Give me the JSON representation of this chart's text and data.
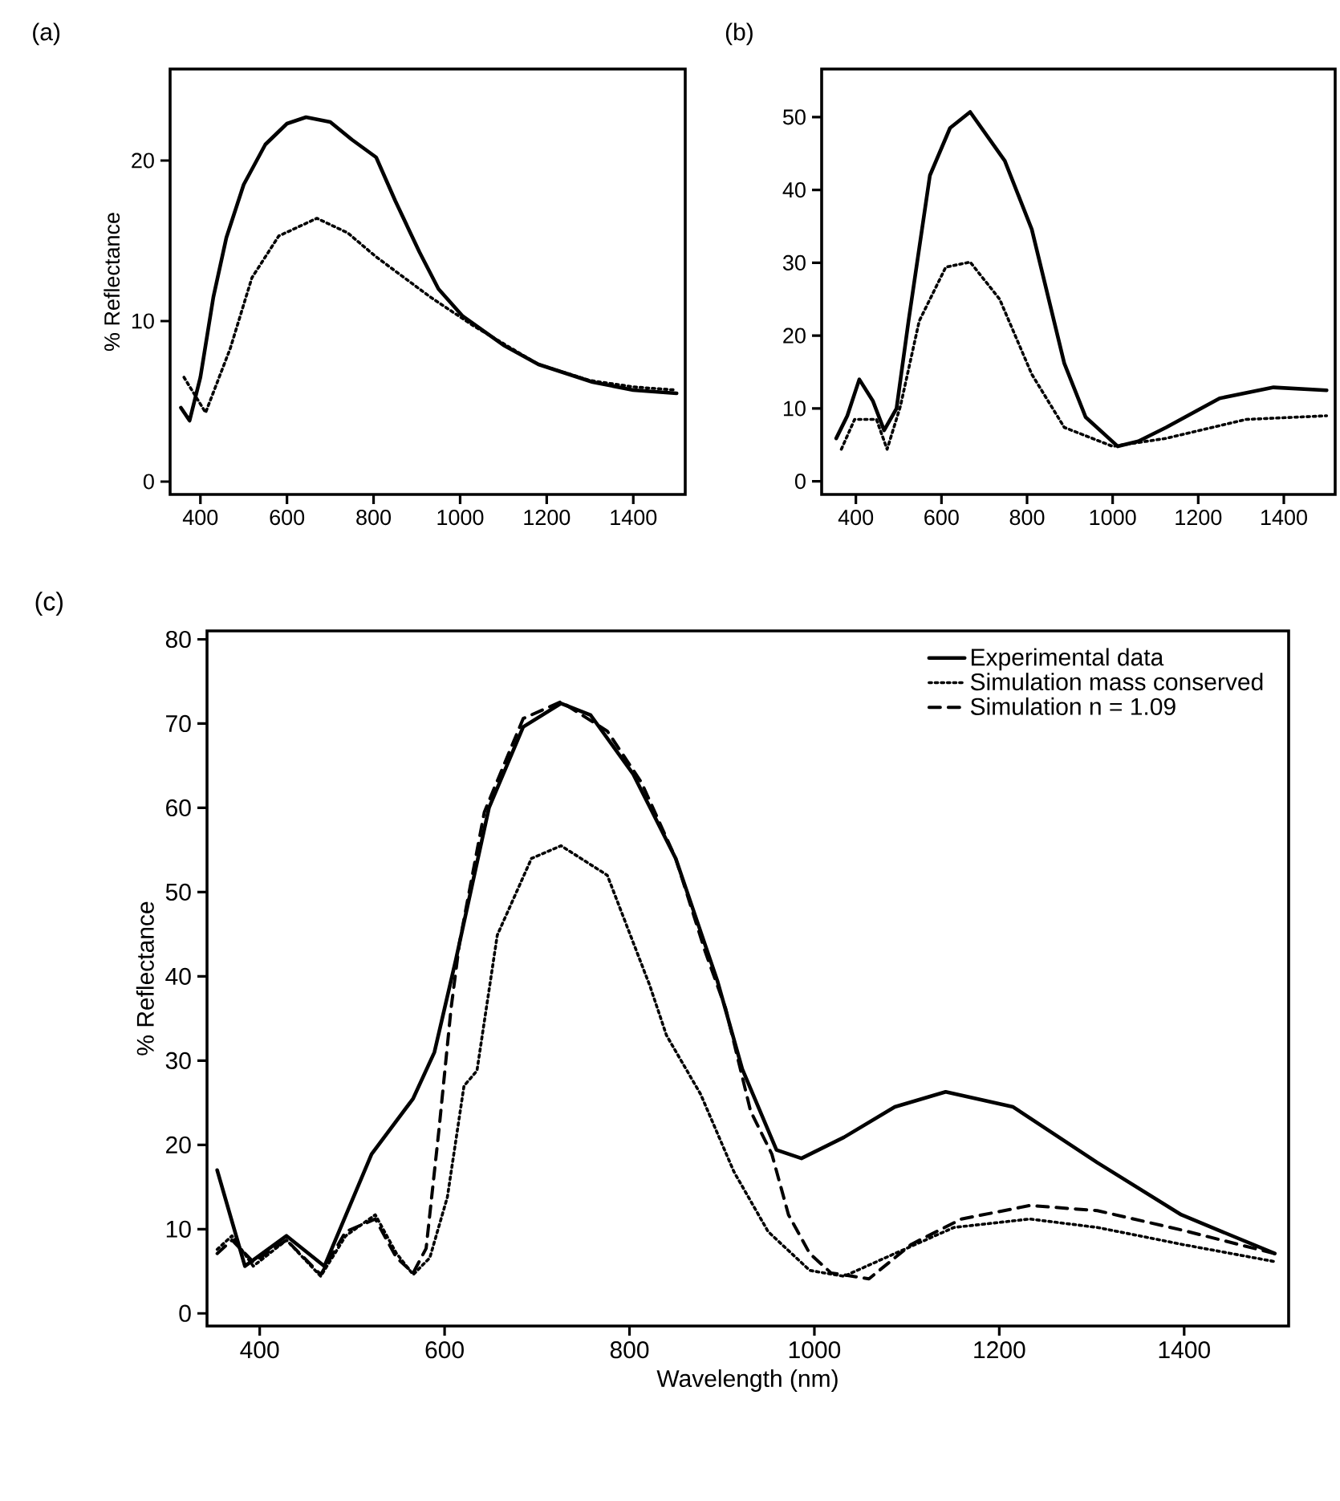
{
  "chart_data": [
    {
      "type": "line",
      "title": "(a)",
      "ylabel": "% Reflectance",
      "xlim": [
        330,
        1520
      ],
      "ylim": [
        -0.8,
        25.7
      ],
      "xticks": [
        400,
        600,
        800,
        1000,
        1200,
        1400
      ],
      "yticks": [
        0,
        10,
        20
      ],
      "series": [
        {
          "color": "#000000",
          "line_style": "solid",
          "x": [
            355,
            375,
            400,
            430,
            460,
            500,
            550,
            600,
            644,
            700,
            750,
            806,
            850,
            906,
            950,
            1006,
            1100,
            1181,
            1306,
            1400,
            1500
          ],
          "values": [
            4.6,
            3.8,
            6.5,
            11.5,
            15.2,
            18.5,
            21,
            22.3,
            22.7,
            22.4,
            21.3,
            20.2,
            17.5,
            14.3,
            12,
            10.3,
            8.5,
            7.3,
            6.2,
            5.7,
            5.5
          ]
        },
        {
          "color": "#000000",
          "line_style": "dotted",
          "x": [
            362,
            412,
            469,
            519,
            581,
            669,
            740,
            806,
            931,
            1031,
            1181,
            1300,
            1400,
            1500
          ],
          "values": [
            6.5,
            4.3,
            8.3,
            12.7,
            15.3,
            16.4,
            15.5,
            14,
            11.5,
            9.7,
            7.3,
            6.3,
            5.9,
            5.7
          ]
        }
      ]
    },
    {
      "type": "line",
      "title": "(b)",
      "xlim": [
        320,
        1520
      ],
      "ylim": [
        -1.8,
        56.6
      ],
      "xticks": [
        400,
        600,
        800,
        1000,
        1200,
        1400
      ],
      "yticks": [
        0,
        10,
        20,
        30,
        40,
        50
      ],
      "series": [
        {
          "color": "#000000",
          "line_style": "solid",
          "x": [
            354,
            380,
            408,
            440,
            466,
            495,
            523,
            573,
            620,
            667,
            748,
            811,
            887,
            937,
            1012,
            1060,
            1125,
            1250,
            1376,
            1500
          ],
          "values": [
            5.9,
            9,
            14,
            11,
            7,
            10,
            22,
            42,
            48.5,
            50.7,
            44,
            34.6,
            16.2,
            8.8,
            4.8,
            5.5,
            7.4,
            11.4,
            12.9,
            12.5
          ]
        },
        {
          "color": "#000000",
          "line_style": "dotted",
          "x": [
            366,
            397,
            448,
            473,
            504,
            548,
            610,
            667,
            736,
            811,
            887,
            1000,
            1125,
            1312,
            1500
          ],
          "values": [
            4.4,
            8.5,
            8.5,
            4.4,
            10.3,
            22,
            29.4,
            30.1,
            25,
            14.7,
            7.4,
            4.8,
            5.9,
            8.5,
            9
          ]
        }
      ]
    },
    {
      "type": "line",
      "title": "(c)",
      "xlabel": "Wavelength (nm)",
      "ylabel": "% Reflectance",
      "xlim": [
        343,
        1513
      ],
      "ylim": [
        -1.5,
        81
      ],
      "xticks": [
        400,
        600,
        800,
        1000,
        1200,
        1400
      ],
      "yticks": [
        0,
        10,
        20,
        30,
        40,
        50,
        60,
        70,
        80
      ],
      "legend": "top right",
      "series": [
        {
          "name": "Experimental data",
          "color": "#000000",
          "line_style": "solid",
          "x": [
            354,
            384,
            429,
            470,
            521,
            566,
            589,
            612,
            648,
            685,
            726,
            758,
            804,
            850,
            895,
            922,
            959,
            986,
            1032,
            1087,
            1142,
            1215,
            1306,
            1397,
            1498
          ],
          "values": [
            17,
            5.6,
            9.2,
            5.6,
            18.9,
            25.5,
            31,
            41.9,
            60,
            69.6,
            72.4,
            71,
            64,
            54,
            39.5,
            29,
            19.4,
            18.4,
            20.9,
            24.5,
            26.3,
            24.5,
            17.9,
            11.7,
            7.1
          ]
        },
        {
          "name": "Simulation mass conserved",
          "color": "#000000",
          "line_style": "dotted",
          "x": [
            354,
            370,
            393,
            429,
            466,
            493,
            525,
            548,
            566,
            584,
            603,
            621,
            635,
            657,
            694,
            726,
            776,
            822,
            840,
            877,
            913,
            950,
            995,
            1032,
            1087,
            1151,
            1233,
            1306,
            1397,
            1500
          ],
          "values": [
            7.6,
            9.2,
            5.6,
            8.7,
            4.4,
            9.2,
            11.7,
            7.1,
            4.6,
            6.6,
            13.8,
            27,
            28.8,
            44.9,
            54,
            55.5,
            52,
            38.9,
            33,
            26,
            16.8,
            9.7,
            5.1,
            4.4,
            7.1,
            10.2,
            11.2,
            10.2,
            8.2,
            6.1
          ]
        },
        {
          "name": "Simulation n = 1.09",
          "color": "#000000",
          "line_style": "dashed",
          "x": [
            354,
            370,
            393,
            429,
            466,
            493,
            525,
            548,
            566,
            580,
            594,
            607,
            616,
            643,
            685,
            726,
            776,
            813,
            850,
            882,
            904,
            931,
            954,
            972,
            995,
            1018,
            1059,
            1105,
            1159,
            1233,
            1306,
            1397,
            1498
          ],
          "values": [
            7.1,
            8.7,
            6.1,
            8.7,
            4.6,
            9.7,
            11.2,
            6.6,
            4.8,
            7.7,
            21.9,
            36.2,
            43.9,
            59.5,
            70.6,
            72.6,
            69.1,
            63,
            54,
            42.9,
            36.2,
            24,
            18.9,
            11.7,
            7.1,
            4.8,
            4.1,
            8.2,
            11.2,
            12.8,
            12.2,
            9.9,
            7.1
          ]
        }
      ]
    }
  ]
}
